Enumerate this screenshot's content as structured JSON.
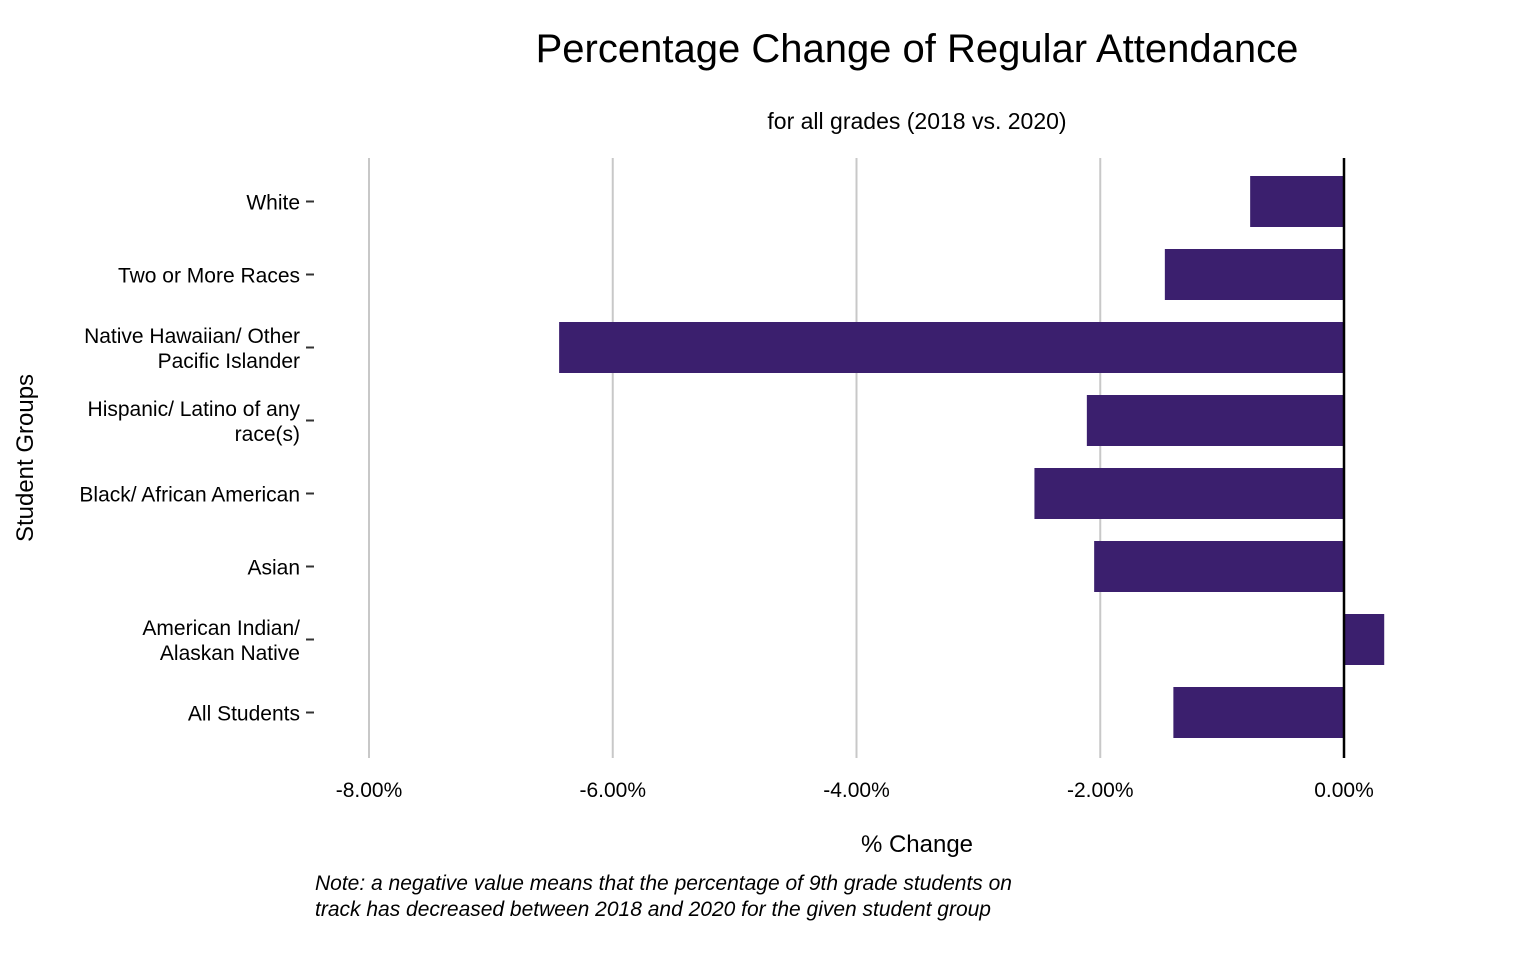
{
  "chart_data": {
    "type": "bar",
    "orientation": "horizontal",
    "title": "Percentage Change of Regular Attendance",
    "subtitle": "for all grades (2018 vs. 2020)",
    "xlabel": "% Change",
    "ylabel": "Student Groups",
    "xlim": [
      -0.09,
      0.004
    ],
    "xticks": [
      -0.08,
      -0.06,
      -0.04,
      -0.02,
      0.0
    ],
    "xtick_labels": [
      "-8.00%",
      "-6.00%",
      "-4.00%",
      "-2.00%",
      "0.00%"
    ],
    "grid": "vertical",
    "bar_color": "#3b1f6e",
    "categories": [
      [
        "White"
      ],
      [
        "Two or More Races"
      ],
      [
        "Native Hawaiian/ Other",
        "Pacific Islander"
      ],
      [
        "Hispanic/ Latino of any",
        "race(s)"
      ],
      [
        "Black/ African American"
      ],
      [
        "Asian"
      ],
      [
        "American Indian/",
        "Alaskan Native"
      ],
      [
        "All Students"
      ]
    ],
    "values": [
      -0.0077,
      -0.0147,
      -0.0644,
      -0.0211,
      -0.0254,
      -0.0205,
      0.0033,
      -0.014
    ]
  },
  "note": {
    "lines": [
      "Note: a negative value means that the percentage of 9th grade students on",
      "track has decreased between 2018 and 2020 for the given student group"
    ]
  }
}
